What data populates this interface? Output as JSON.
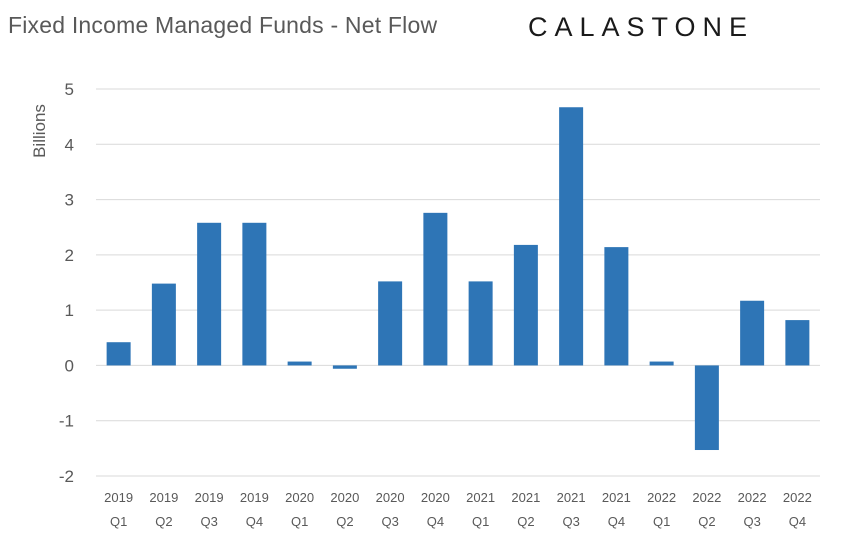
{
  "header": {
    "title": "Fixed Income Managed Funds - Net Flow",
    "brand": "CALASTONE"
  },
  "colors": {
    "bar": "#2E75B6",
    "grid": "#D9D9D9",
    "text": "#595959"
  },
  "chart_data": {
    "type": "bar",
    "title": "Fixed Income Managed Funds - Net Flow",
    "xlabel": "",
    "ylabel": "Billions",
    "ylim": [
      -2,
      5
    ],
    "yticks": [
      5,
      4,
      3,
      2,
      1,
      0,
      -1,
      -2
    ],
    "grid": true,
    "legend": "none",
    "categories": [
      [
        "2019",
        "Q1"
      ],
      [
        "2019",
        "Q2"
      ],
      [
        "2019",
        "Q3"
      ],
      [
        "2019",
        "Q4"
      ],
      [
        "2020",
        "Q1"
      ],
      [
        "2020",
        "Q2"
      ],
      [
        "2020",
        "Q3"
      ],
      [
        "2020",
        "Q4"
      ],
      [
        "2021",
        "Q1"
      ],
      [
        "2021",
        "Q2"
      ],
      [
        "2021",
        "Q3"
      ],
      [
        "2021",
        "Q4"
      ],
      [
        "2022",
        "Q1"
      ],
      [
        "2022",
        "Q2"
      ],
      [
        "2022",
        "Q3"
      ],
      [
        "2022",
        "Q4"
      ]
    ],
    "values": [
      0.42,
      1.48,
      2.58,
      2.58,
      0.07,
      -0.06,
      1.52,
      2.76,
      1.52,
      2.18,
      4.67,
      2.14,
      0.07,
      -1.53,
      1.17,
      0.82
    ]
  }
}
